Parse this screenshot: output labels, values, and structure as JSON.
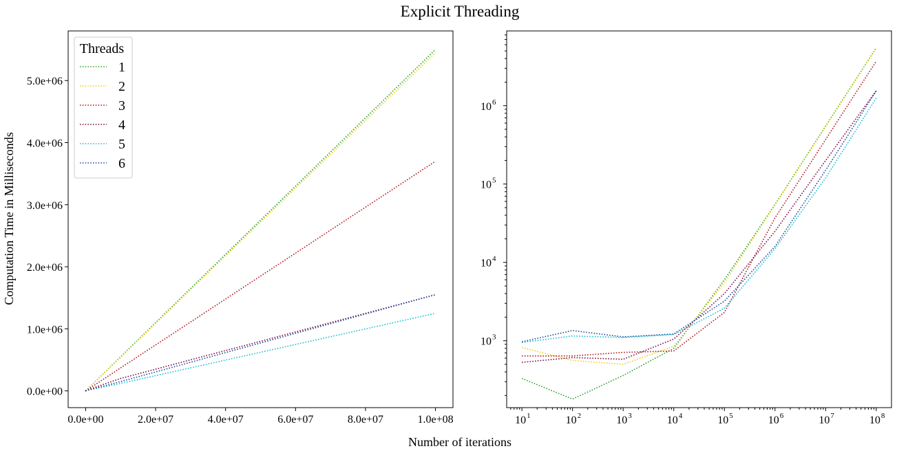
{
  "figure": {
    "title": "Explicit Threading",
    "xlabel": "Number of iterations",
    "ylabel": "Computation Time in Milliseconds"
  },
  "legend": {
    "title": "Threads",
    "placement": "upper-left"
  },
  "series_colors": {
    "1": "#2ca02c",
    "2": "#e5d21a",
    "3": "#b0171f",
    "4": "#7b0c45",
    "5": "#17becf",
    "6": "#1f4d9b"
  },
  "chart_data": [
    {
      "type": "line",
      "line_style": "dotted",
      "x_scale": "linear",
      "y_scale": "linear",
      "xlim": [
        -5000000,
        105000000
      ],
      "ylim": [
        -270000,
        5800000
      ],
      "xticks": [
        0,
        20000000,
        40000000,
        60000000,
        80000000,
        100000000
      ],
      "xtick_labels": [
        "0.0e+00",
        "2.0e+07",
        "4.0e+07",
        "6.0e+07",
        "8.0e+07",
        "1.0e+08"
      ],
      "yticks": [
        0,
        1000000,
        2000000,
        3000000,
        4000000,
        5000000
      ],
      "ytick_labels": [
        "0.0e+00",
        "1.0e+06",
        "2.0e+06",
        "3.0e+06",
        "4.0e+06",
        "5.0e+06"
      ],
      "grid": false,
      "legend": "top-left",
      "x": [
        10,
        100,
        1000,
        10000,
        100000,
        1000000,
        10000000,
        100000000
      ],
      "series": [
        {
          "name": "1",
          "values": [
            330,
            180,
            360,
            800,
            6000,
            55000,
            550000,
            5500000
          ]
        },
        {
          "name": "2",
          "values": [
            820,
            560,
            500,
            850,
            5500,
            54000,
            540000,
            5450000
          ]
        },
        {
          "name": "3",
          "values": [
            640,
            640,
            710,
            740,
            2300,
            37000,
            370000,
            3700000
          ]
        },
        {
          "name": "4",
          "values": [
            530,
            610,
            580,
            1050,
            4000,
            25000,
            200000,
            1550000
          ]
        },
        {
          "name": "5",
          "values": [
            950,
            1150,
            1100,
            1200,
            2600,
            15000,
            120000,
            1250000
          ]
        },
        {
          "name": "6",
          "values": [
            970,
            1350,
            1120,
            1220,
            3200,
            16000,
            150000,
            1550000
          ]
        }
      ]
    },
    {
      "type": "line",
      "line_style": "dotted",
      "x_scale": "log",
      "y_scale": "log",
      "xlim": [
        5,
        200000000
      ],
      "ylim": [
        140,
        9000000
      ],
      "xtick_base": "10",
      "xtick_exponents": [
        "1",
        "2",
        "3",
        "4",
        "5",
        "6",
        "7",
        "8"
      ],
      "ytick_base": "10",
      "ytick_exponents": [
        "3",
        "4",
        "5",
        "6"
      ],
      "grid": false,
      "x": [
        10,
        100,
        1000,
        10000,
        100000,
        1000000,
        10000000,
        100000000
      ],
      "series": [
        {
          "name": "1",
          "values": [
            330,
            180,
            360,
            800,
            6000,
            55000,
            550000,
            5500000
          ]
        },
        {
          "name": "2",
          "values": [
            820,
            560,
            500,
            850,
            5500,
            54000,
            540000,
            5450000
          ]
        },
        {
          "name": "3",
          "values": [
            640,
            640,
            710,
            740,
            2300,
            37000,
            370000,
            3700000
          ]
        },
        {
          "name": "4",
          "values": [
            530,
            610,
            580,
            1050,
            4000,
            25000,
            200000,
            1550000
          ]
        },
        {
          "name": "5",
          "values": [
            950,
            1150,
            1100,
            1200,
            2600,
            15000,
            120000,
            1250000
          ]
        },
        {
          "name": "6",
          "values": [
            970,
            1350,
            1120,
            1220,
            3200,
            16000,
            150000,
            1550000
          ]
        }
      ]
    }
  ]
}
